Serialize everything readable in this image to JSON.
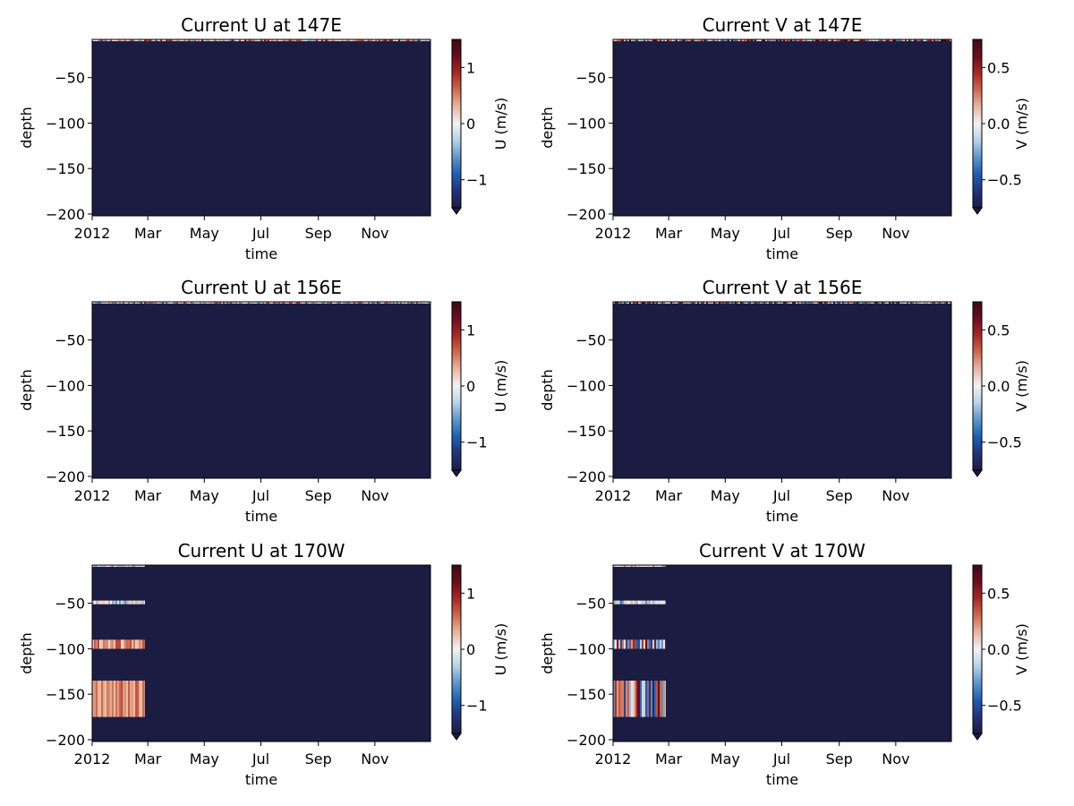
{
  "colors": {
    "fill_masked": "#1b1c42",
    "cmap": [
      "#1c1c43",
      "#21347a",
      "#1e5fb3",
      "#5e96cb",
      "#b7d2e6",
      "#f2f2f2",
      "#e7b7a3",
      "#cf6a4d",
      "#a92824",
      "#6b0d1d",
      "#3f0a12"
    ]
  },
  "chart_data": [
    {
      "type": "heatmap",
      "title": "Current U at 147E",
      "xlabel": "time",
      "ylabel": "depth",
      "colorbar_label": "U (m/s)",
      "x_ticks": [
        "2012",
        "Mar",
        "May",
        "Jul",
        "Sep",
        "Nov"
      ],
      "x_tick_days": [
        0,
        60,
        121,
        182,
        244,
        305
      ],
      "xlim_days": [
        0,
        365
      ],
      "y_ticks": [
        -50,
        -100,
        -150,
        -200
      ],
      "ylim": [
        -202,
        -8
      ],
      "clim": [
        -1.5,
        1.5
      ],
      "cbar_ticks": [
        -1,
        0,
        1
      ],
      "cbar_tick_labels": [
        "−1",
        "0",
        "1"
      ],
      "background_value": "masked",
      "bands": [
        {
          "depth_top": -8,
          "depth_bottom": -10,
          "start_day": 0,
          "end_day": 365,
          "mean_value": 0.3,
          "spread": 0.8,
          "seed": 11
        }
      ]
    },
    {
      "type": "heatmap",
      "title": "Current V at 147E",
      "xlabel": "time",
      "ylabel": "depth",
      "colorbar_label": "V (m/s)",
      "x_ticks": [
        "2012",
        "Mar",
        "May",
        "Jul",
        "Sep",
        "Nov"
      ],
      "x_tick_days": [
        0,
        60,
        121,
        182,
        244,
        305
      ],
      "xlim_days": [
        0,
        365
      ],
      "y_ticks": [
        -50,
        -100,
        -150,
        -200
      ],
      "ylim": [
        -202,
        -8
      ],
      "clim": [
        -0.75,
        0.75
      ],
      "cbar_ticks": [
        -0.5,
        0,
        0.5
      ],
      "cbar_tick_labels": [
        "−0.5",
        "0.0",
        "0.5"
      ],
      "background_value": "masked",
      "bands": [
        {
          "depth_top": -8,
          "depth_bottom": -10,
          "start_day": 0,
          "end_day": 365,
          "mean_value": 0.2,
          "spread": 0.6,
          "seed": 23
        }
      ]
    },
    {
      "type": "heatmap",
      "title": "Current U at 156E",
      "xlabel": "time",
      "ylabel": "depth",
      "colorbar_label": "U (m/s)",
      "x_ticks": [
        "2012",
        "Mar",
        "May",
        "Jul",
        "Sep",
        "Nov"
      ],
      "x_tick_days": [
        0,
        60,
        121,
        182,
        244,
        305
      ],
      "xlim_days": [
        0,
        365
      ],
      "y_ticks": [
        -50,
        -100,
        -150,
        -200
      ],
      "ylim": [
        -202,
        -8
      ],
      "clim": [
        -1.5,
        1.5
      ],
      "cbar_ticks": [
        -1,
        0,
        1
      ],
      "cbar_tick_labels": [
        "−1",
        "0",
        "1"
      ],
      "background_value": "masked",
      "bands": [
        {
          "depth_top": -8,
          "depth_bottom": -10,
          "start_day": 0,
          "end_day": 365,
          "mean_value": 0.1,
          "spread": 0.8,
          "seed": 37
        }
      ]
    },
    {
      "type": "heatmap",
      "title": "Current V at 156E",
      "xlabel": "time",
      "ylabel": "depth",
      "colorbar_label": "V (m/s)",
      "x_ticks": [
        "2012",
        "Mar",
        "May",
        "Jul",
        "Sep",
        "Nov"
      ],
      "x_tick_days": [
        0,
        60,
        121,
        182,
        244,
        305
      ],
      "xlim_days": [
        0,
        365
      ],
      "y_ticks": [
        -50,
        -100,
        -150,
        -200
      ],
      "ylim": [
        -202,
        -8
      ],
      "clim": [
        -0.75,
        0.75
      ],
      "cbar_ticks": [
        -0.5,
        0,
        0.5
      ],
      "cbar_tick_labels": [
        "−0.5",
        "0.0",
        "0.5"
      ],
      "background_value": "masked",
      "bands": [
        {
          "depth_top": -8,
          "depth_bottom": -10,
          "start_day": 0,
          "end_day": 365,
          "mean_value": 0.1,
          "spread": 0.6,
          "seed": 41
        }
      ]
    },
    {
      "type": "heatmap",
      "title": "Current U at 170W",
      "xlabel": "time",
      "ylabel": "depth",
      "colorbar_label": "U (m/s)",
      "x_ticks": [
        "2012",
        "Mar",
        "May",
        "Jul",
        "Sep",
        "Nov"
      ],
      "x_tick_days": [
        0,
        60,
        121,
        182,
        244,
        305
      ],
      "xlim_days": [
        0,
        365
      ],
      "y_ticks": [
        -50,
        -100,
        -150,
        -200
      ],
      "ylim": [
        -202,
        -8
      ],
      "clim": [
        -1.5,
        1.5
      ],
      "cbar_ticks": [
        -1,
        0,
        1
      ],
      "cbar_tick_labels": [
        "−1",
        "0",
        "1"
      ],
      "background_value": "masked",
      "bands": [
        {
          "depth_top": -8,
          "depth_bottom": -10,
          "start_day": 0,
          "end_day": 57,
          "mean_value": 0.0,
          "spread": 0.6,
          "seed": 53
        },
        {
          "depth_top": -47,
          "depth_bottom": -51,
          "start_day": 0,
          "end_day": 57,
          "mean_value": -0.1,
          "spread": 0.5,
          "seed": 59
        },
        {
          "depth_top": -90,
          "depth_bottom": -100,
          "start_day": 0,
          "end_day": 57,
          "mean_value": 0.45,
          "spread": 0.35,
          "seed": 61
        },
        {
          "depth_top": -135,
          "depth_bottom": -175,
          "start_day": 0,
          "end_day": 57,
          "mean_value": 0.5,
          "spread": 0.25,
          "seed": 67
        }
      ]
    },
    {
      "type": "heatmap",
      "title": "Current V at 170W",
      "xlabel": "time",
      "ylabel": "depth",
      "colorbar_label": "V (m/s)",
      "x_ticks": [
        "2012",
        "Mar",
        "May",
        "Jul",
        "Sep",
        "Nov"
      ],
      "x_tick_days": [
        0,
        60,
        121,
        182,
        244,
        305
      ],
      "xlim_days": [
        0,
        365
      ],
      "y_ticks": [
        -50,
        -100,
        -150,
        -200
      ],
      "ylim": [
        -202,
        -8
      ],
      "clim": [
        -0.75,
        0.75
      ],
      "cbar_ticks": [
        -0.5,
        0,
        0.5
      ],
      "cbar_tick_labels": [
        "−0.5",
        "0.0",
        "0.5"
      ],
      "background_value": "masked",
      "bands": [
        {
          "depth_top": -8,
          "depth_bottom": -10,
          "start_day": 0,
          "end_day": 57,
          "mean_value": 0.0,
          "spread": 0.3,
          "seed": 71
        },
        {
          "depth_top": -47,
          "depth_bottom": -51,
          "start_day": 0,
          "end_day": 57,
          "mean_value": -0.1,
          "spread": 0.3,
          "seed": 73
        },
        {
          "depth_top": -90,
          "depth_bottom": -100,
          "start_day": 0,
          "end_day": 57,
          "mean_value": 0.05,
          "spread": 0.6,
          "seed": 79
        },
        {
          "depth_top": -135,
          "depth_bottom": -175,
          "start_day": 0,
          "end_day": 57,
          "mean_value": 0.0,
          "spread": 0.7,
          "seed": 83
        }
      ]
    }
  ]
}
